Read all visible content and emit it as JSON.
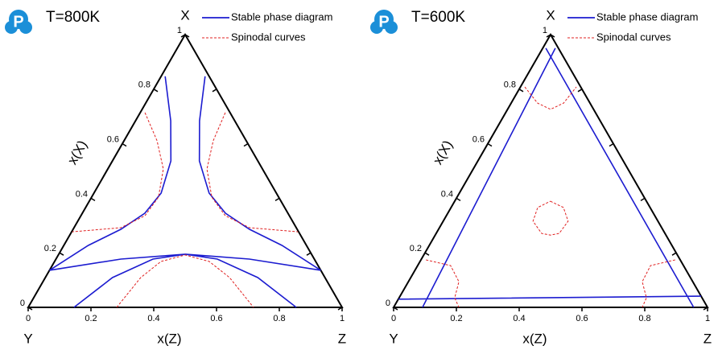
{
  "chart_data": [
    {
      "type": "ternary",
      "logo": "P",
      "title": "T=800K",
      "top_label": "X",
      "left_label": "Y",
      "right_label": "Z",
      "xlabel": "x(Z)",
      "ylabel": "x(X)",
      "xlim": [
        0,
        1
      ],
      "ylim": [
        0,
        1
      ],
      "xticks": [
        0,
        0.2,
        0.4,
        0.6,
        0.8,
        1
      ],
      "yticks": [
        0,
        0.2,
        0.4,
        0.6,
        0.8,
        1
      ],
      "series": [
        {
          "name": "Stable phase diagram",
          "color": "#1c1cd0",
          "line_style": "solid",
          "x": [
            0.013,
            0.112,
            0.186,
            0.214,
            0.199,
            0.152,
            0.078,
            0,
            null,
            0.14,
            0.204,
            0.277,
            0.367,
            0.456,
            0.562,
            0.695,
            0.864,
            null,
            0,
            0.207,
            0.403,
            0.616,
            0.864,
            null,
            0.146,
            0.214,
            0.309,
            0.403,
            0.514,
            0.677,
            0.854
          ],
          "values": [
            0.847,
            0.684,
            0.537,
            0.419,
            0.345,
            0.286,
            0.227,
            0.136,
            null,
            0.847,
            0.684,
            0.537,
            0.419,
            0.345,
            0.286,
            0.227,
            0.136,
            null,
            0.136,
            0.177,
            0.195,
            0.177,
            0.136,
            null,
            0,
            0.109,
            0.177,
            0.195,
            0.177,
            0.109,
            0
          ]
        },
        {
          "name": "Spinodal curves",
          "color": "#e02020",
          "line_style": "dashed",
          "x": [
            0.015,
            0.105,
            0.177,
            0.213,
            0.204,
            0.149,
            0.002,
            null,
            0.271,
            0.284,
            0.316,
            0.383,
            0.46,
            0.559,
            0.721,
            null,
            0.282,
            0.304,
            0.339,
            0.404,
            0.493,
            0.587,
            0.718
          ],
          "values": [
            0.714,
            0.611,
            0.507,
            0.404,
            0.336,
            0.292,
            0.277,
            null,
            0.714,
            0.611,
            0.507,
            0.404,
            0.336,
            0.292,
            0.277,
            null,
            0,
            0.109,
            0.168,
            0.192,
            0.168,
            0.109,
            0
          ]
        }
      ]
    },
    {
      "type": "ternary",
      "logo": "P",
      "title": "T=600K",
      "top_label": "X",
      "left_label": "Y",
      "right_label": "Z",
      "xlabel": "x(Z)",
      "ylabel": "x(X)",
      "xlim": [
        0,
        1
      ],
      "ylim": [
        0,
        1
      ],
      "xticks": [
        0,
        0.2,
        0.4,
        0.6,
        0.8,
        1
      ],
      "yticks": [
        0,
        0.2,
        0.4,
        0.6,
        0.8,
        1
      ],
      "series": [
        {
          "name": "Stable phase diagram",
          "color": "#1c1cd0",
          "line_style": "solid",
          "x": [
            0.01,
            0.956,
            null,
            0.04,
            0.092,
            null,
            0,
            0.959
          ],
          "values": [
            0.95,
            0,
            null,
            0.95,
            0,
            null,
            0.03,
            0.041
          ]
        },
        {
          "name": "Spinodal curves",
          "color": "#e02020",
          "line_style": "dashed",
          "x": [
            0.014,
            0.084,
            0.137,
            0.167,
            0.178,
            null,
            0.305,
            0.358,
            0.398,
            0.392,
            0.367,
            0.336,
            0.286,
            0.276,
            0.305,
            null,
            0.016,
            0.105,
            0.161,
            0.177,
            0.208,
            null,
            0.81,
            0.742,
            0.745,
            0.788,
            0.792
          ],
          "values": [
            0.808,
            0.749,
            0.726,
            0.749,
            0.808,
            null,
            0.389,
            0.366,
            0.316,
            0.271,
            0.265,
            0.271,
            0.316,
            0.366,
            0.389,
            null,
            0.174,
            0.153,
            0.094,
            0.035,
            0,
            null,
            0.174,
            0.153,
            0.094,
            0.035,
            0
          ]
        }
      ]
    }
  ]
}
